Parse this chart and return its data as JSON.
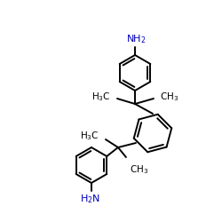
{
  "background_color": "#ffffff",
  "bond_color": "#000000",
  "nh2_color": "#0000bb",
  "bond_width": 1.4,
  "font_size": 7.5,
  "ring_r": 20,
  "cent_r": 22
}
